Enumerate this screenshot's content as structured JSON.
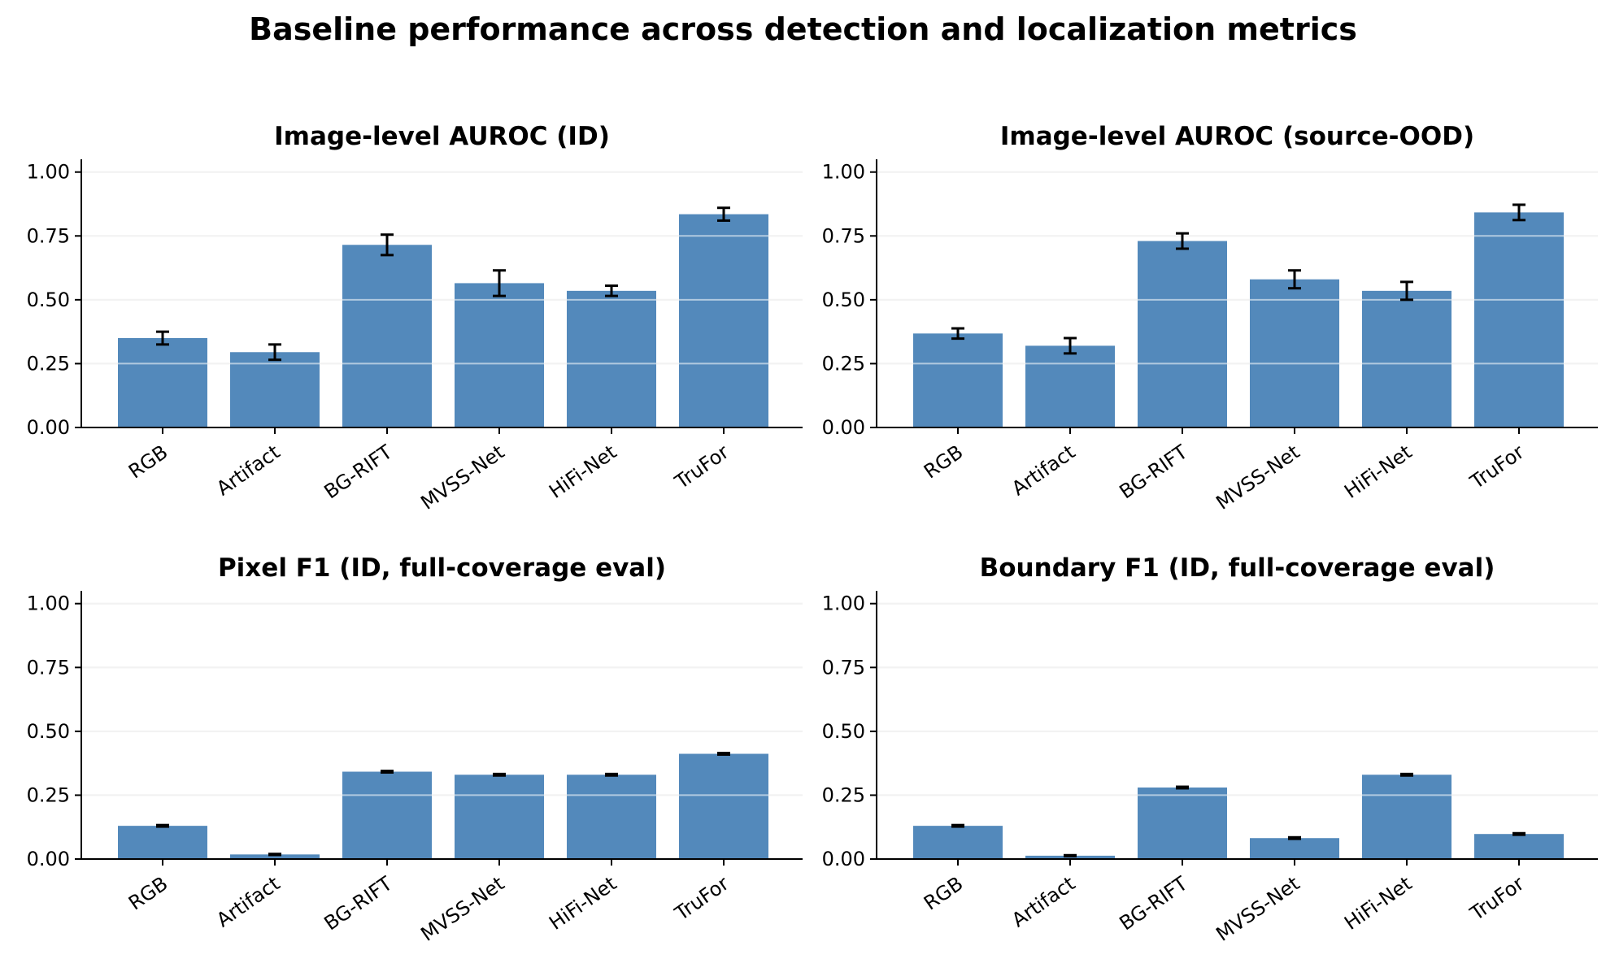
{
  "figure": {
    "title": "Baseline performance across detection and localization metrics"
  },
  "colors": {
    "bar": "#5389bb",
    "grid": "#e3e3e3",
    "error_bar": "#000000"
  },
  "chart_data": [
    {
      "type": "bar",
      "title": "Image-level AUROC (ID)",
      "xlabel": "",
      "ylabel": "",
      "ylim": [
        0,
        1.05
      ],
      "yticks": [
        0.0,
        0.25,
        0.5,
        0.75,
        1.0
      ],
      "ytick_labels": [
        "0.00",
        "0.25",
        "0.50",
        "0.75",
        "1.00"
      ],
      "grid": "y",
      "categories": [
        "RGB",
        "Artifact",
        "BG-RIFT",
        "MVSS-Net",
        "HiFi-Net",
        "TruFor"
      ],
      "values": [
        0.35,
        0.295,
        0.715,
        0.565,
        0.535,
        0.835
      ],
      "errors": [
        0.025,
        0.03,
        0.04,
        0.05,
        0.02,
        0.025
      ]
    },
    {
      "type": "bar",
      "title": "Image-level AUROC (source-OOD)",
      "xlabel": "",
      "ylabel": "",
      "ylim": [
        0,
        1.05
      ],
      "yticks": [
        0.0,
        0.25,
        0.5,
        0.75,
        1.0
      ],
      "ytick_labels": [
        "0.00",
        "0.25",
        "0.50",
        "0.75",
        "1.00"
      ],
      "grid": "y",
      "categories": [
        "RGB",
        "Artifact",
        "BG-RIFT",
        "MVSS-Net",
        "HiFi-Net",
        "TruFor"
      ],
      "values": [
        0.368,
        0.32,
        0.73,
        0.58,
        0.535,
        0.842
      ],
      "errors": [
        0.02,
        0.03,
        0.03,
        0.035,
        0.035,
        0.03
      ]
    },
    {
      "type": "bar",
      "title": "Pixel F1 (ID, full-coverage eval)",
      "xlabel": "",
      "ylabel": "",
      "ylim": [
        0,
        1.05
      ],
      "yticks": [
        0.0,
        0.25,
        0.5,
        0.75,
        1.0
      ],
      "ytick_labels": [
        "0.00",
        "0.25",
        "0.50",
        "0.75",
        "1.00"
      ],
      "grid": "y",
      "categories": [
        "RGB",
        "Artifact",
        "BG-RIFT",
        "MVSS-Net",
        "HiFi-Net",
        "TruFor"
      ],
      "values": [
        0.13,
        0.018,
        0.342,
        0.33,
        0.33,
        0.412
      ],
      "errors": [
        0.003,
        0.002,
        0.003,
        0.003,
        0.003,
        0.003
      ]
    },
    {
      "type": "bar",
      "title": "Boundary F1 (ID, full-coverage eval)",
      "xlabel": "",
      "ylabel": "",
      "ylim": [
        0,
        1.05
      ],
      "yticks": [
        0.0,
        0.25,
        0.5,
        0.75,
        1.0
      ],
      "ytick_labels": [
        "0.00",
        "0.25",
        "0.50",
        "0.75",
        "1.00"
      ],
      "grid": "y",
      "categories": [
        "RGB",
        "Artifact",
        "BG-RIFT",
        "MVSS-Net",
        "HiFi-Net",
        "TruFor"
      ],
      "values": [
        0.13,
        0.013,
        0.28,
        0.082,
        0.33,
        0.098
      ],
      "errors": [
        0.003,
        0.002,
        0.003,
        0.003,
        0.003,
        0.003
      ]
    }
  ]
}
